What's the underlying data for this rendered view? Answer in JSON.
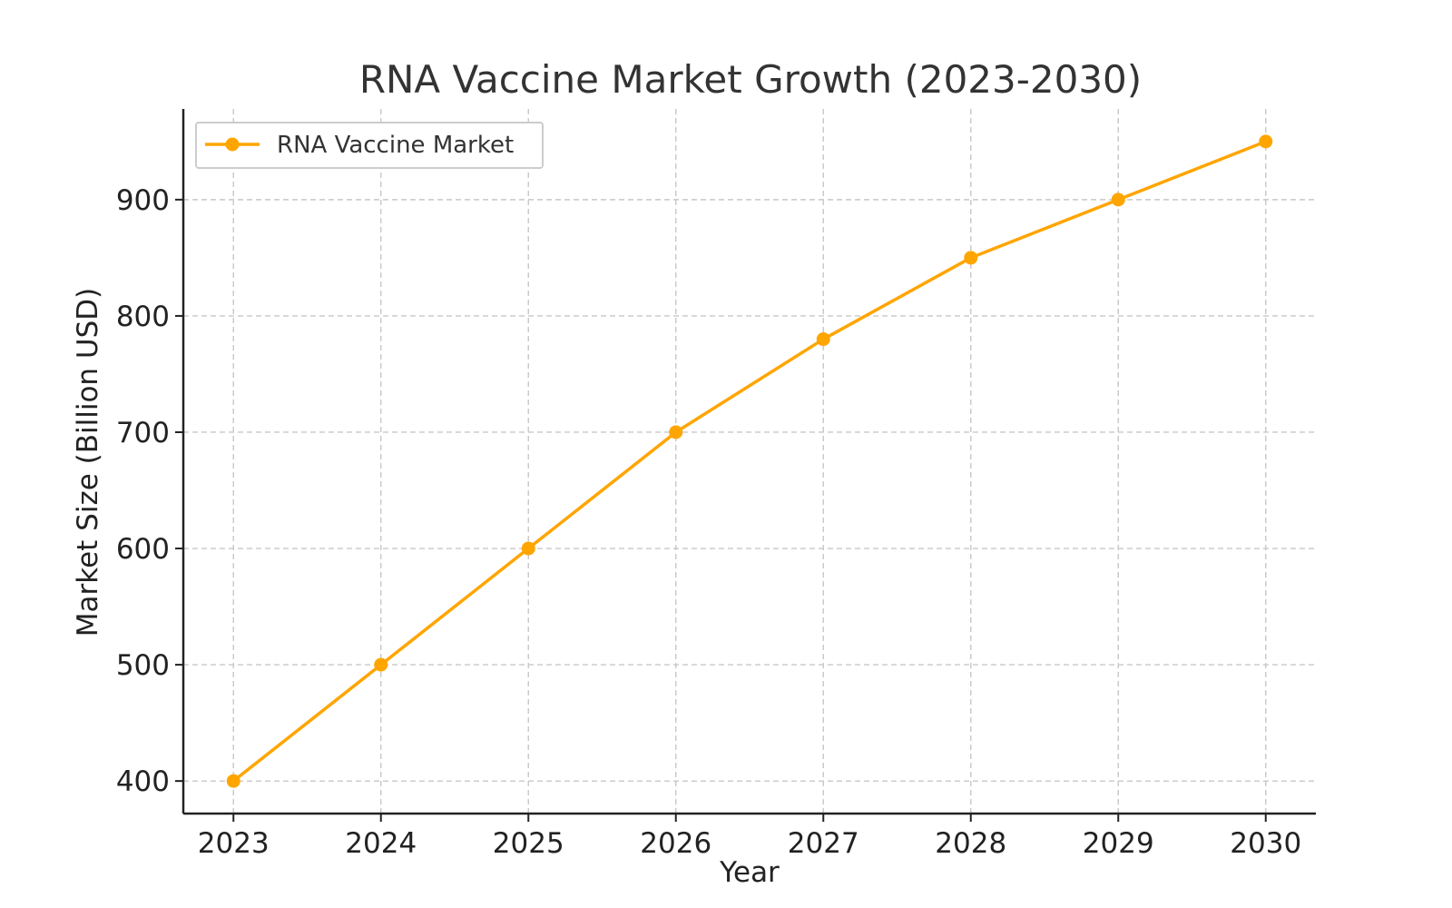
{
  "chart_data": {
    "type": "line",
    "title": "RNA Vaccine Market Growth (2023-2030)",
    "xlabel": "Year",
    "ylabel": "Market Size (Billion USD)",
    "x": [
      2023,
      2024,
      2025,
      2026,
      2027,
      2028,
      2029,
      2030
    ],
    "x_tick_labels": [
      "2023",
      "2024",
      "2025",
      "2026",
      "2027",
      "2028",
      "2029",
      "2030"
    ],
    "y_ticks": [
      400,
      500,
      600,
      700,
      800,
      900
    ],
    "y_tick_labels": [
      "400",
      "500",
      "600",
      "700",
      "800",
      "900"
    ],
    "xlim": [
      2022.66,
      2030.34
    ],
    "ylim": [
      372,
      978
    ],
    "grid": true,
    "legend": {
      "position": "top-left"
    },
    "series": [
      {
        "name": "RNA Vaccine Market",
        "values": [
          400,
          500,
          600,
          700,
          780,
          850,
          900,
          950
        ],
        "color": "#FFA500",
        "marker": "circle"
      }
    ]
  }
}
